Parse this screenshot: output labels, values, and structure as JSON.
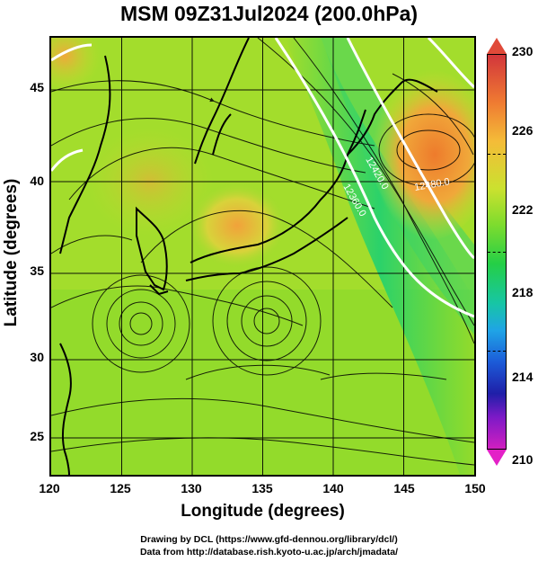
{
  "title": "MSM 09Z31Jul2024 (200.0hPa)",
  "xaxis": {
    "label": "Longitude (degrees)",
    "ticks": [
      "120",
      "125",
      "130",
      "135",
      "140",
      "145",
      "150"
    ]
  },
  "yaxis": {
    "label": "Latitude (degrees)",
    "ticks": [
      "45",
      "40",
      "35",
      "30",
      "25"
    ]
  },
  "colorbar": {
    "ticks": [
      "230",
      "226",
      "222",
      "218",
      "214",
      "210"
    ],
    "range": [
      210,
      230
    ],
    "colors": [
      "#d11fc0",
      "#1f1fa8",
      "#1fa4e6",
      "#25cf46",
      "#cbe12f",
      "#f4bc38",
      "#d2363b"
    ]
  },
  "contours": [
    "12420.0",
    "12360.0",
    "12480.0"
  ],
  "credits": {
    "line1": "Drawing by DCL (https://www.gfd-dennou.org/library/dcl/)",
    "line2": "Data from http://database.rish.kyoto-u.ac.jp/arch/jmadata/"
  }
}
